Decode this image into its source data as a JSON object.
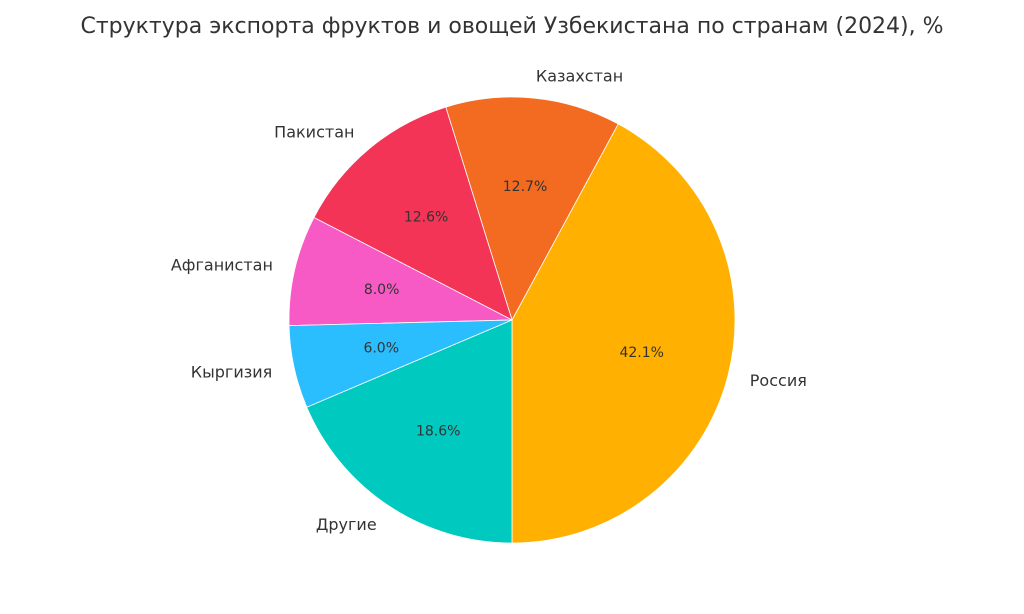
{
  "chart_data": {
    "type": "pie",
    "title": "Структура экспорта фруктов и овощей Узбекистана по странам (2024), %",
    "start_angle_deg": 270,
    "direction": "counterclockwise",
    "slices": [
      {
        "label": "Россия",
        "value": 42.1,
        "value_label": "42.1%",
        "color": "#FFB000"
      },
      {
        "label": "Казахстан",
        "value": 12.7,
        "value_label": "12.7%",
        "color": "#F26B21"
      },
      {
        "label": "Пакистан",
        "value": 12.6,
        "value_label": "12.6%",
        "color": "#F43456"
      },
      {
        "label": "Афганистан",
        "value": 8.0,
        "value_label": "8.0%",
        "color": "#F85AC5"
      },
      {
        "label": "Кыргизия",
        "value": 6.0,
        "value_label": "6.0%",
        "color": "#2BBEFF"
      },
      {
        "label": "Другие",
        "value": 18.6,
        "value_label": "18.6%",
        "color": "#00C9BF"
      }
    ]
  }
}
